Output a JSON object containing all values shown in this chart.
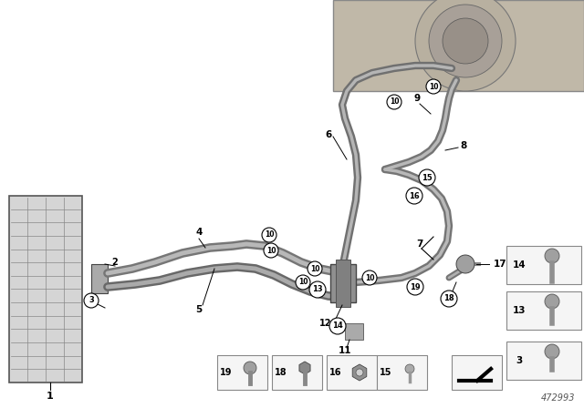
{
  "background_color": "#ffffff",
  "diagram_number": "472993",
  "text_color": "#000000",
  "pipe_color_dark": "#7a7a7a",
  "pipe_color_light": "#b8b8b8",
  "engine_color": "#c8c0b0",
  "cooler_color": "#d0d0d0",
  "legend_bg": "#f0f0f0",
  "legend_border": "#aaaaaa"
}
